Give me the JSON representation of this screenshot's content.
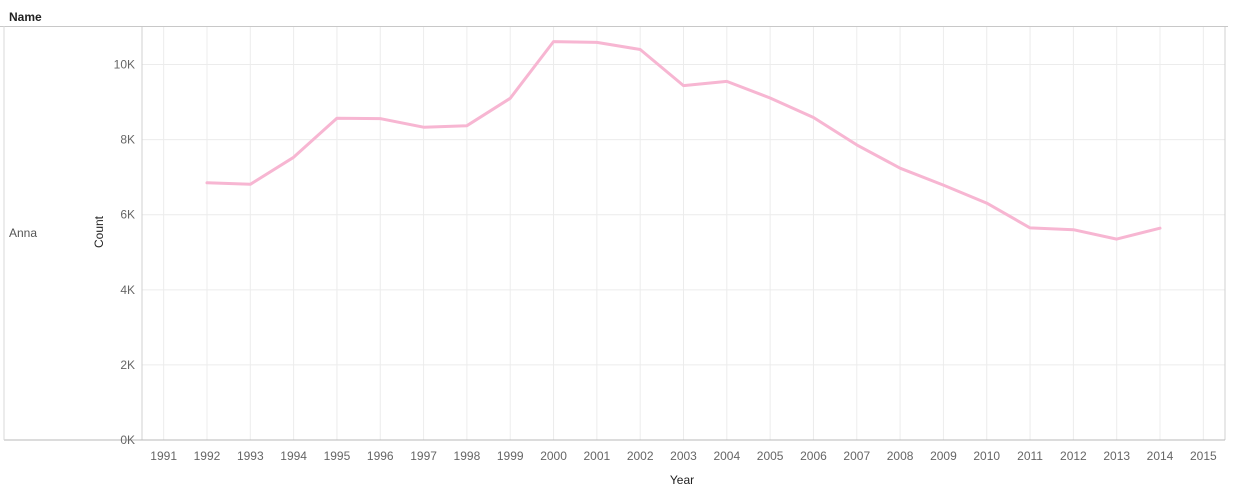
{
  "header": {
    "name_column": "Name"
  },
  "row": {
    "label": "Anna"
  },
  "chart_data": {
    "type": "line",
    "xlabel": "Year",
    "ylabel": "Count",
    "xlim": [
      1990.5,
      2015.5
    ],
    "ylim": [
      0,
      11000
    ],
    "x_ticks": [
      1991,
      1992,
      1993,
      1994,
      1995,
      1996,
      1997,
      1998,
      1999,
      2000,
      2001,
      2002,
      2003,
      2004,
      2005,
      2006,
      2007,
      2008,
      2009,
      2010,
      2011,
      2012,
      2013,
      2014,
      2015
    ],
    "y_ticks": [
      0,
      2000,
      4000,
      6000,
      8000,
      10000
    ],
    "y_tick_labels": [
      "0K",
      "2K",
      "4K",
      "6K",
      "8K",
      "10K"
    ],
    "grid": true,
    "series": [
      {
        "color": "#f7b6d2",
        "x": [
          1992,
          1993,
          1994,
          1995,
          1996,
          1997,
          1998,
          1999,
          2000,
          2001,
          2002,
          2003,
          2004,
          2005,
          2006,
          2007,
          2008,
          2009,
          2010,
          2011,
          2012,
          2013,
          2014
        ],
        "values": [
          6850,
          6810,
          7530,
          8570,
          8560,
          8330,
          8370,
          9100,
          10610,
          10590,
          10400,
          9440,
          9550,
          9110,
          8590,
          7860,
          7240,
          6790,
          6310,
          5650,
          5600,
          5350,
          5640
        ]
      }
    ]
  }
}
